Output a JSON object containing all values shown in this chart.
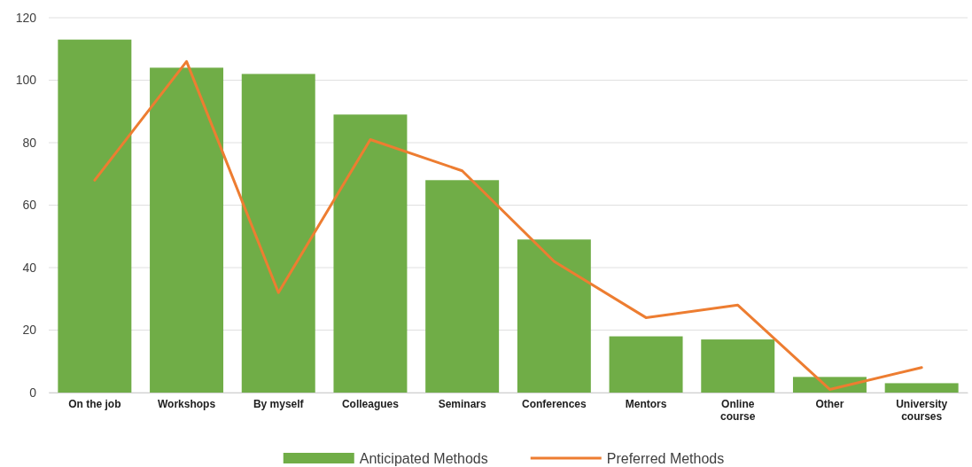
{
  "chart_data": {
    "type": "bar",
    "categories": [
      "On the job",
      "Workshops",
      "By myself",
      "Colleagues",
      "Seminars",
      "Conferences",
      "Mentors",
      "Online course",
      "Other",
      "University courses"
    ],
    "series": [
      {
        "name": "Anticipated Methods",
        "color": "#70ad47",
        "values": [
          113,
          104,
          102,
          89,
          68,
          49,
          18,
          17,
          5,
          3
        ]
      },
      {
        "name": "Preferred Methods",
        "type": "line",
        "color": "#ed7d31",
        "values": [
          68,
          106,
          32,
          81,
          71,
          42,
          24,
          28,
          1,
          8
        ]
      }
    ],
    "ylim": [
      0,
      120
    ],
    "yticks": [
      0,
      20,
      40,
      60,
      80,
      100,
      120
    ],
    "grid": "y",
    "legend": "bottom",
    "marker": "none",
    "line_style": "solid"
  }
}
